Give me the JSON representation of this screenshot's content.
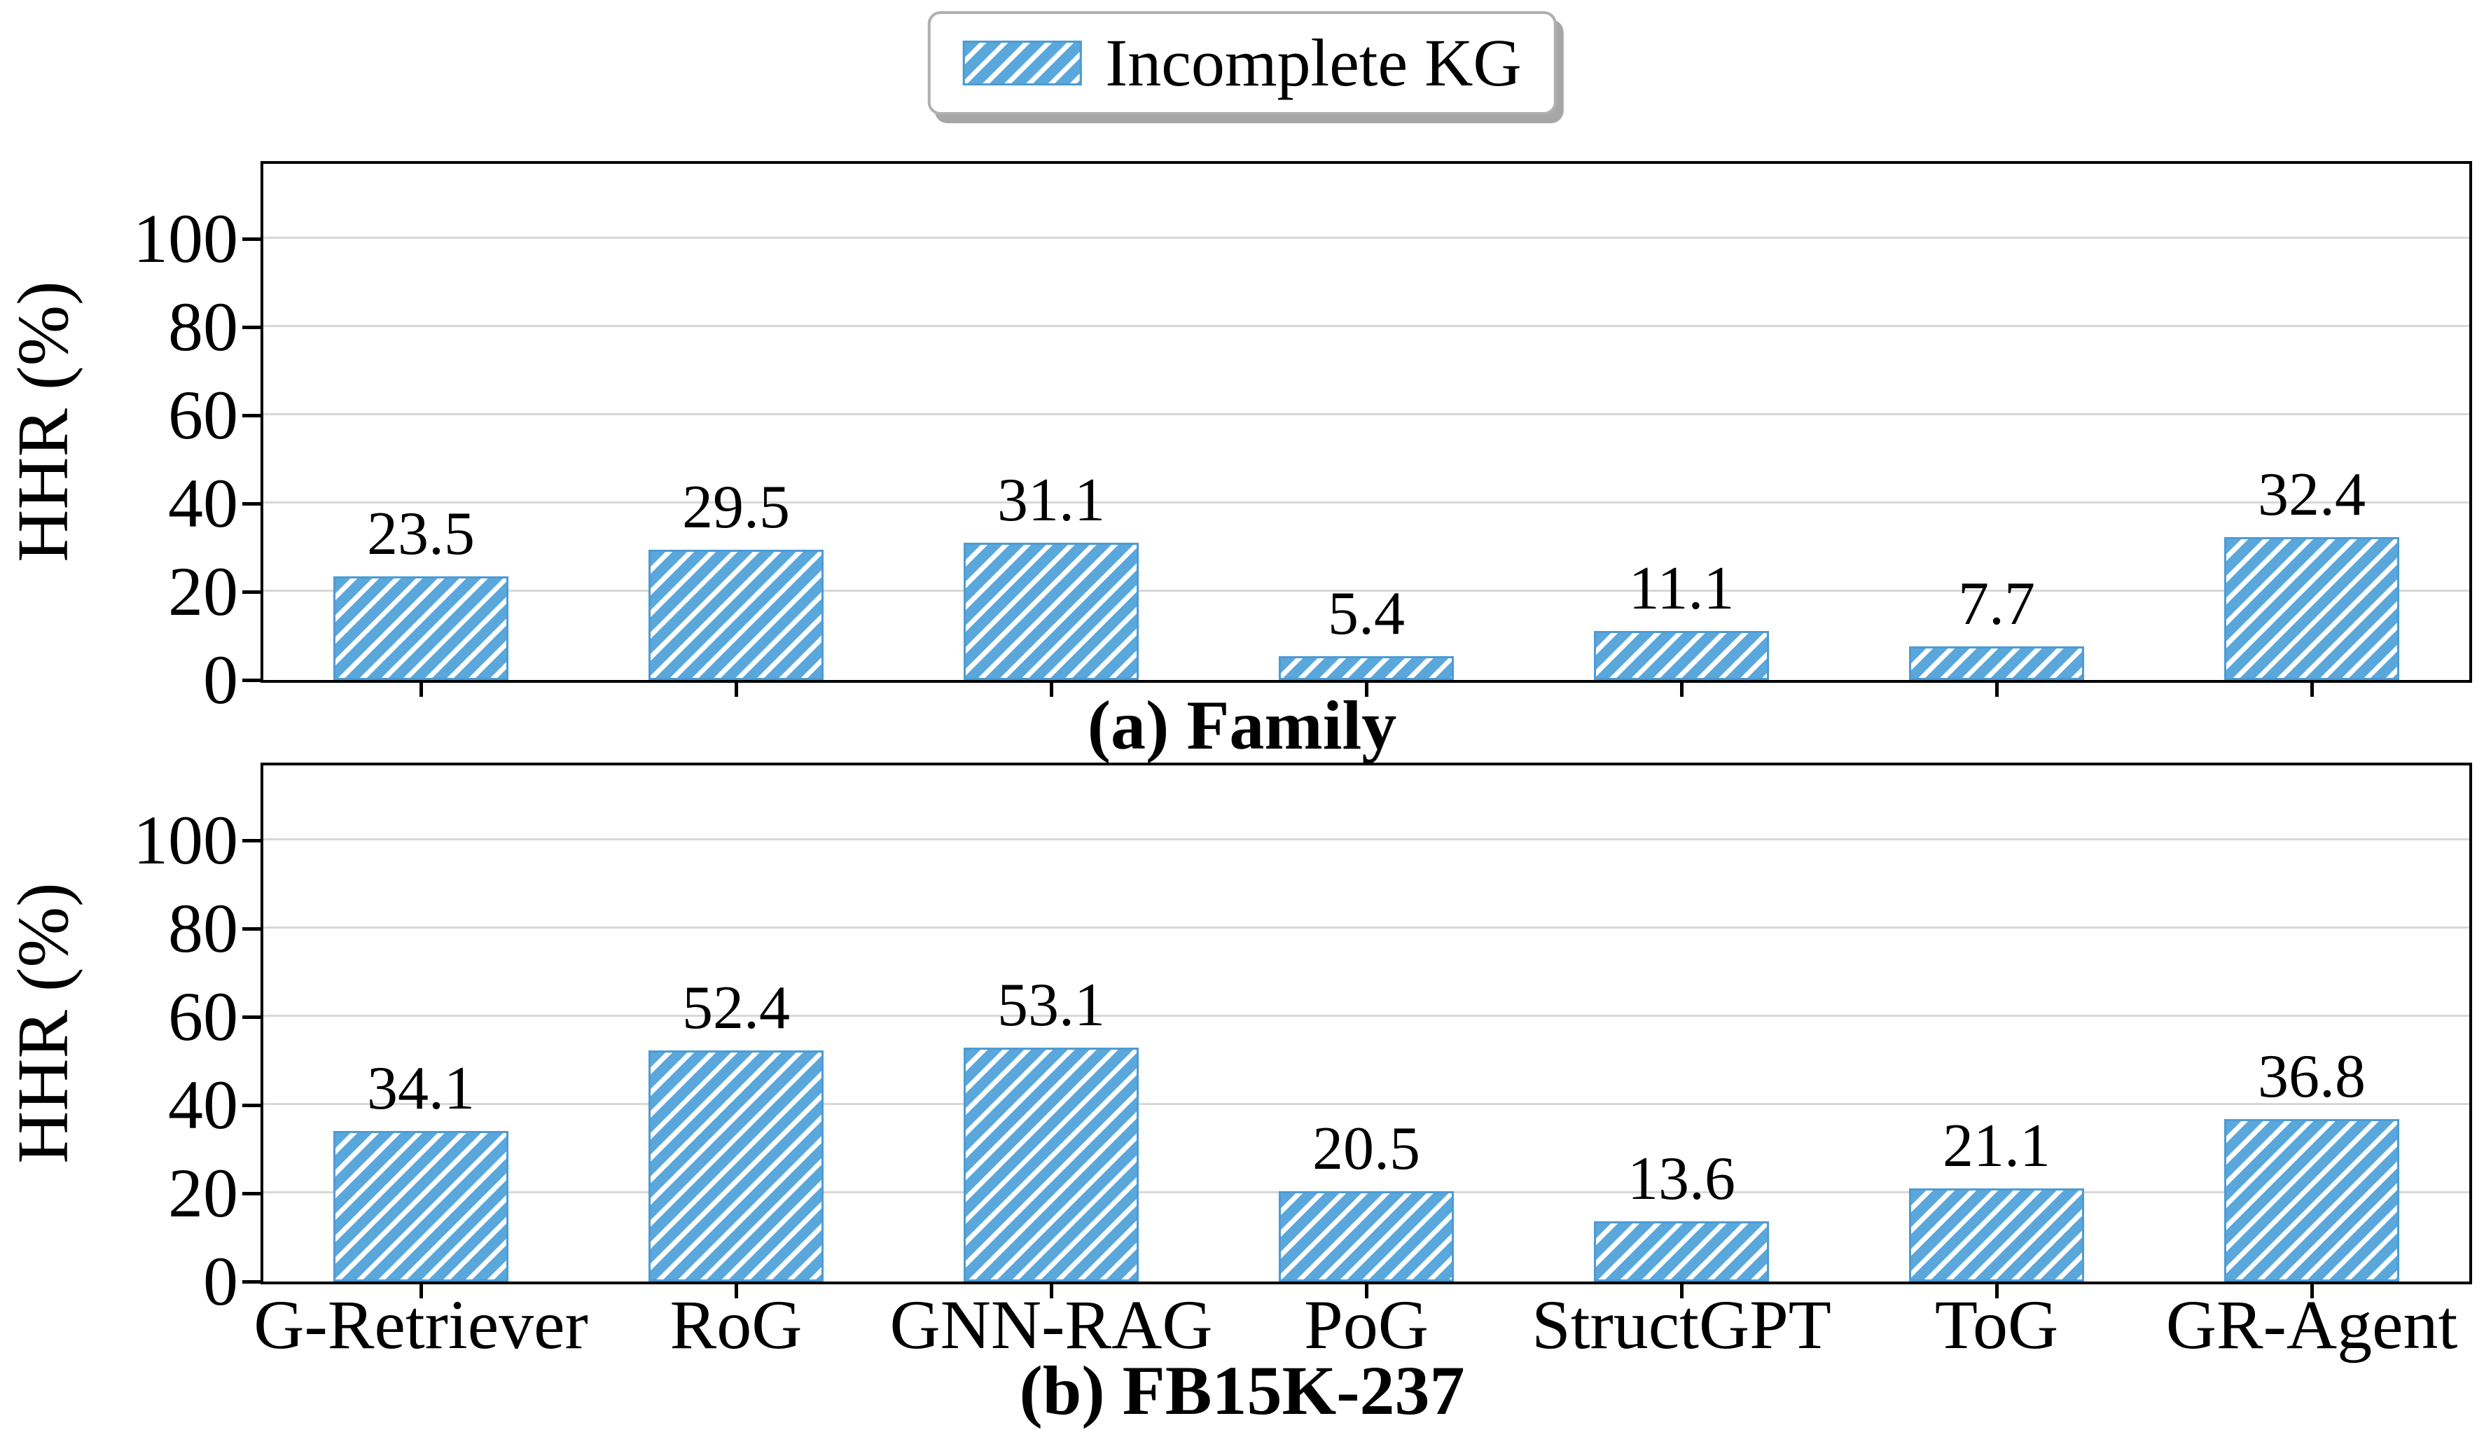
{
  "legend": {
    "label": "Incomplete KG",
    "swatch_hatch": "//"
  },
  "colors": {
    "bar": "#5aa7dc",
    "bar_edge": "#4d9bd3",
    "hatch": "#ffffff",
    "grid": "#d8d8d8",
    "axis": "#000000",
    "legend_border": "#b0b0b0",
    "legend_shadow": "#a6a6a6"
  },
  "chart_data": [
    {
      "type": "bar",
      "title": "(a) Family",
      "xlabel": "",
      "ylabel": "HHR (%)",
      "categories": [
        "G-Retriever",
        "RoG",
        "GNN-RAG",
        "PoG",
        "StructGPT",
        "ToG",
        "GR-Agent"
      ],
      "values": [
        23.5,
        29.5,
        31.1,
        5.4,
        11.1,
        7.7,
        32.4
      ],
      "series_name": "Incomplete KG",
      "yticks": [
        0,
        20,
        40,
        60,
        80,
        100
      ],
      "ylim": [
        0,
        117
      ],
      "grid": true,
      "hatch": "//",
      "show_x_labels": false,
      "legend_position": "top-center-above-figure"
    },
    {
      "type": "bar",
      "title": "(b) FB15K-237",
      "xlabel": "",
      "ylabel": "HHR (%)",
      "categories": [
        "G-Retriever",
        "RoG",
        "GNN-RAG",
        "PoG",
        "StructGPT",
        "ToG",
        "GR-Agent"
      ],
      "values": [
        34.1,
        52.4,
        53.1,
        20.5,
        13.6,
        21.1,
        36.8
      ],
      "series_name": "Incomplete KG",
      "yticks": [
        0,
        20,
        40,
        60,
        80,
        100
      ],
      "ylim": [
        0,
        117
      ],
      "grid": true,
      "hatch": "//",
      "show_x_labels": true,
      "legend_position": "top-center-above-figure"
    }
  ]
}
